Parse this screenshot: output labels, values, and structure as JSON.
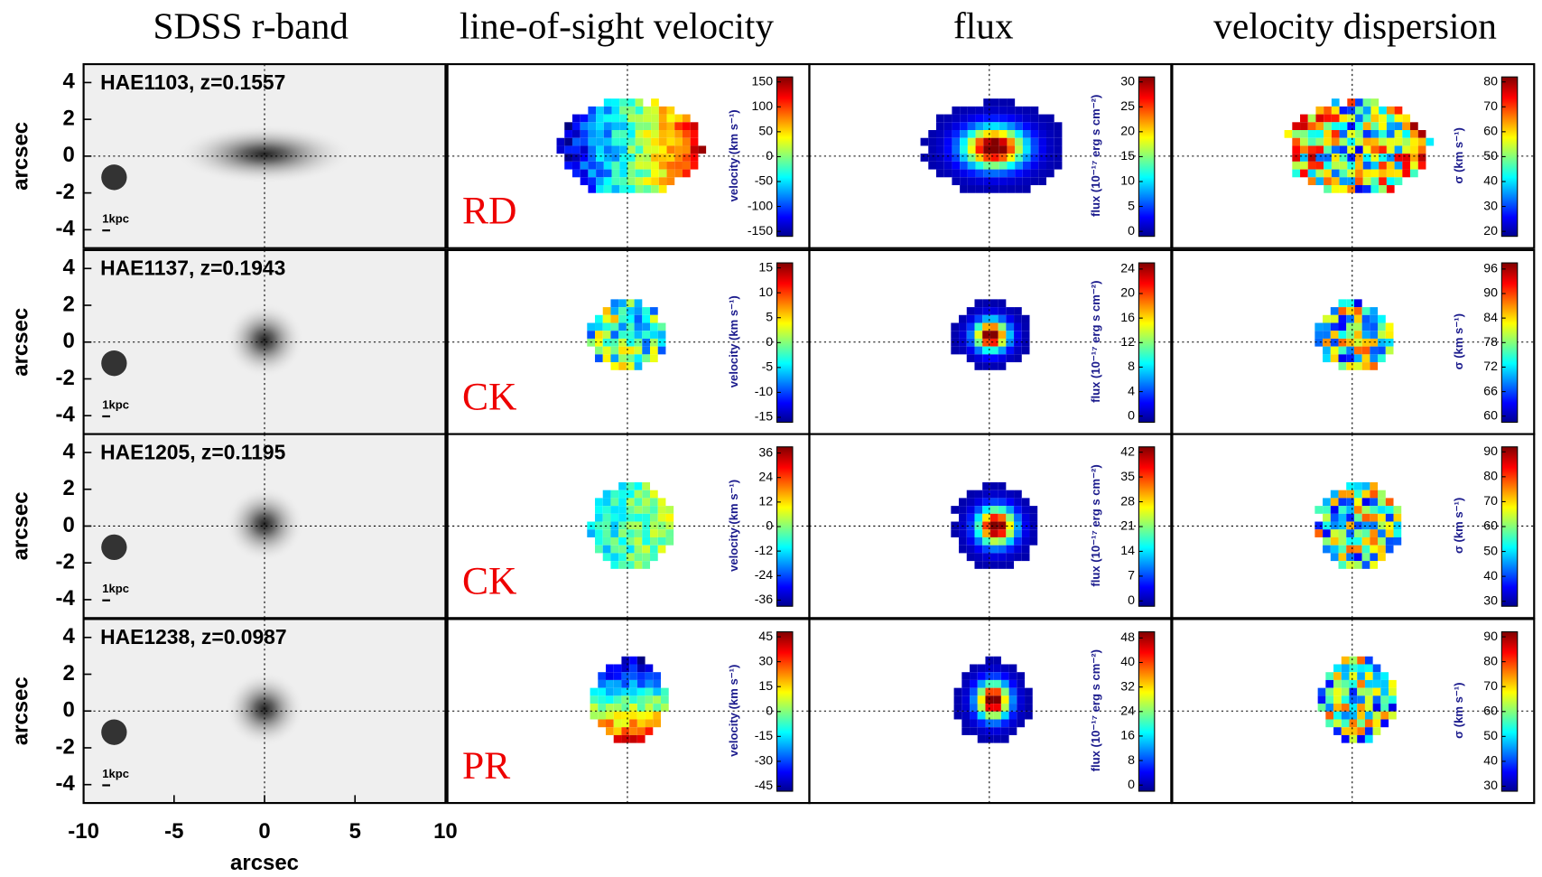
{
  "headers": [
    "SDSS   r-band",
    "line-of-sight velocity",
    "flux",
    "velocity dispersion"
  ],
  "axes": {
    "ylabel": "arcsec",
    "xlabel": "arcsec",
    "xlim": [
      -10,
      10
    ],
    "ylim": [
      -5,
      5
    ],
    "xticks": [
      -10,
      -5,
      0,
      5,
      10
    ],
    "yticks": [
      4,
      2,
      0,
      -2,
      -4
    ]
  },
  "scale_label": "1kpc",
  "rows": [
    {
      "name": "HAE1103, z=0.1557",
      "class": "RD",
      "maps": [
        {
          "label": "velocity (km s⁻¹)",
          "lim": [
            -160,
            160
          ],
          "ticks": [
            150,
            100,
            50,
            0,
            -50,
            -100,
            -150
          ]
        },
        {
          "label": "flux (10⁻¹⁷ erg s cm⁻²)",
          "lim": [
            -1,
            31
          ],
          "ticks": [
            30,
            25,
            20,
            15,
            10,
            5,
            0
          ]
        },
        {
          "label": "σ (km s⁻¹)",
          "lim": [
            18,
            82
          ],
          "ticks": [
            80,
            70,
            60,
            50,
            40,
            30,
            20
          ]
        }
      ]
    },
    {
      "name": "HAE1137, z=0.1943",
      "class": "CK",
      "maps": [
        {
          "label": "velocity (km s⁻¹)",
          "lim": [
            -16,
            16
          ],
          "ticks": [
            15,
            10,
            5,
            0,
            -5,
            -10,
            -15
          ]
        },
        {
          "label": "flux (10⁻¹⁷ erg s cm⁻²)",
          "lim": [
            -1,
            25
          ],
          "ticks": [
            24,
            20,
            16,
            12,
            8,
            4,
            0
          ]
        },
        {
          "label": "σ (km s⁻¹)",
          "lim": [
            58.5,
            97.5
          ],
          "ticks": [
            96,
            90,
            84,
            78,
            72,
            66,
            60
          ]
        }
      ]
    },
    {
      "name": "HAE1205, z=0.1195",
      "class": "CK",
      "maps": [
        {
          "label": "velocity (km s⁻¹)",
          "lim": [
            -39,
            39
          ],
          "ticks": [
            36,
            24,
            12,
            0,
            -12,
            -24,
            -36
          ]
        },
        {
          "label": "flux (10⁻¹⁷ erg s cm⁻²)",
          "lim": [
            -1.5,
            43.5
          ],
          "ticks": [
            42,
            35,
            28,
            21,
            14,
            7,
            0
          ]
        },
        {
          "label": "σ (km s⁻¹)",
          "lim": [
            28,
            92
          ],
          "ticks": [
            90,
            80,
            70,
            60,
            50,
            40,
            30
          ]
        }
      ]
    },
    {
      "name": "HAE1238, z=0.0987",
      "class": "PR",
      "maps": [
        {
          "label": "velocity (km s⁻¹)",
          "lim": [
            -48,
            48
          ],
          "ticks": [
            45,
            30,
            15,
            0,
            -15,
            -30,
            -45
          ]
        },
        {
          "label": "flux (10⁻¹⁷ erg s cm⁻²)",
          "lim": [
            -2,
            50
          ],
          "ticks": [
            48,
            40,
            32,
            24,
            16,
            8,
            0
          ]
        },
        {
          "label": "σ (km s⁻¹)",
          "lim": [
            28,
            92
          ],
          "ticks": [
            90,
            80,
            70,
            60,
            50,
            40,
            30
          ]
        }
      ]
    }
  ]
}
